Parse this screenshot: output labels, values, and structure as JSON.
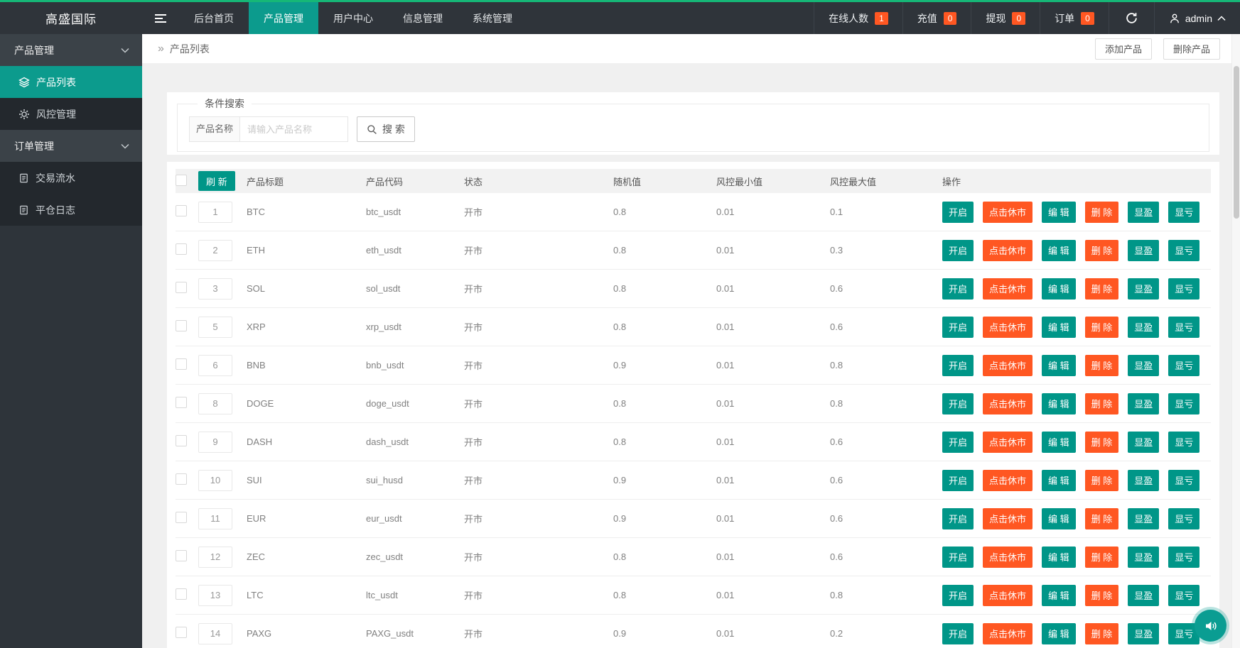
{
  "colors": {
    "accent_teal": "#009688",
    "accent_orange": "#ff5722",
    "topbar_green": "#16b777",
    "topbar_bg": "#2f343a",
    "sidebar_active": "#0c9b8d"
  },
  "navbar": {
    "logo": "高盛国际",
    "items": [
      {
        "label": "后台首页",
        "active": false
      },
      {
        "label": "产品管理",
        "active": true
      },
      {
        "label": "用户中心",
        "active": false
      },
      {
        "label": "信息管理",
        "active": false
      },
      {
        "label": "系统管理",
        "active": false
      }
    ],
    "status": [
      {
        "label": "在线人数",
        "count": "1"
      },
      {
        "label": "充值",
        "count": "0"
      },
      {
        "label": "提现",
        "count": "0"
      },
      {
        "label": "订单",
        "count": "0"
      }
    ],
    "user": "admin"
  },
  "sidebar": {
    "groups": [
      {
        "label": "产品管理",
        "children": [
          {
            "label": "产品列表",
            "active": true
          },
          {
            "label": "风控管理",
            "active": false
          }
        ]
      },
      {
        "label": "订单管理",
        "children": [
          {
            "label": "交易流水",
            "active": false
          },
          {
            "label": "平仓日志",
            "active": false
          }
        ]
      }
    ]
  },
  "breadcrumb": {
    "symbol": "»",
    "title": "产品列表"
  },
  "page_actions": {
    "add": "添加产品",
    "delete": "删除产品"
  },
  "search": {
    "legend": "条件搜索",
    "field_label": "产品名称",
    "placeholder": "请输入产品名称",
    "button": "搜 索"
  },
  "table": {
    "refresh_label": "刷 新",
    "headers": [
      "产品标题",
      "产品代码",
      "状态",
      "随机值",
      "风控最小值",
      "风控最大值",
      "操作"
    ],
    "action_buttons": [
      {
        "label": "开启",
        "style": "teal",
        "name": "open-market-button"
      },
      {
        "label": "点击休市",
        "style": "orange",
        "name": "close-market-button"
      },
      {
        "label": "编 辑",
        "style": "teal",
        "name": "edit-button"
      },
      {
        "label": "删 除",
        "style": "orange",
        "name": "delete-button"
      },
      {
        "label": "显盈",
        "style": "teal",
        "name": "show-profit-button"
      },
      {
        "label": "显亏",
        "style": "teal",
        "name": "show-loss-button"
      }
    ],
    "rows": [
      {
        "id": "1",
        "title": "BTC",
        "code": "btc_usdt",
        "status": "开市",
        "random": "0.8",
        "risk_min": "0.01",
        "risk_max": "0.1"
      },
      {
        "id": "2",
        "title": "ETH",
        "code": "eth_usdt",
        "status": "开市",
        "random": "0.8",
        "risk_min": "0.01",
        "risk_max": "0.3"
      },
      {
        "id": "3",
        "title": "SOL",
        "code": "sol_usdt",
        "status": "开市",
        "random": "0.8",
        "risk_min": "0.01",
        "risk_max": "0.6"
      },
      {
        "id": "5",
        "title": "XRP",
        "code": "xrp_usdt",
        "status": "开市",
        "random": "0.8",
        "risk_min": "0.01",
        "risk_max": "0.6"
      },
      {
        "id": "6",
        "title": "BNB",
        "code": "bnb_usdt",
        "status": "开市",
        "random": "0.9",
        "risk_min": "0.01",
        "risk_max": "0.8"
      },
      {
        "id": "8",
        "title": "DOGE",
        "code": "doge_usdt",
        "status": "开市",
        "random": "0.8",
        "risk_min": "0.01",
        "risk_max": "0.8"
      },
      {
        "id": "9",
        "title": "DASH",
        "code": "dash_usdt",
        "status": "开市",
        "random": "0.8",
        "risk_min": "0.01",
        "risk_max": "0.6"
      },
      {
        "id": "10",
        "title": "SUI",
        "code": "sui_husd",
        "status": "开市",
        "random": "0.9",
        "risk_min": "0.01",
        "risk_max": "0.6"
      },
      {
        "id": "11",
        "title": "EUR",
        "code": "eur_usdt",
        "status": "开市",
        "random": "0.9",
        "risk_min": "0.01",
        "risk_max": "0.6"
      },
      {
        "id": "12",
        "title": "ZEC",
        "code": "zec_usdt",
        "status": "开市",
        "random": "0.8",
        "risk_min": "0.01",
        "risk_max": "0.6"
      },
      {
        "id": "13",
        "title": "LTC",
        "code": "ltc_usdt",
        "status": "开市",
        "random": "0.8",
        "risk_min": "0.01",
        "risk_max": "0.8"
      },
      {
        "id": "14",
        "title": "PAXG",
        "code": "PAXG_usdt",
        "status": "开市",
        "random": "0.9",
        "risk_min": "0.01",
        "risk_max": "0.2"
      }
    ]
  }
}
